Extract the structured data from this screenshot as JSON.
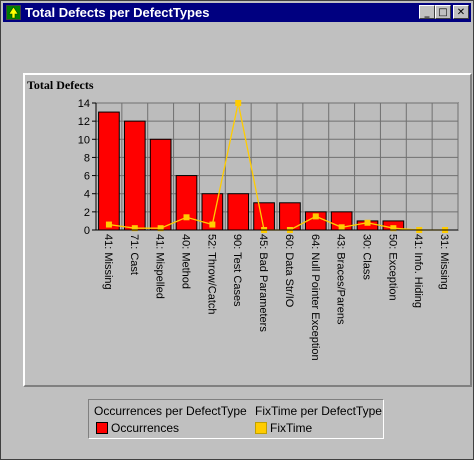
{
  "window": {
    "title": "Total Defects per DefectTypes",
    "controls": {
      "minimize": "_",
      "maximize": "□",
      "close": "✕"
    },
    "icon": "tree-icon"
  },
  "legend": {
    "header_left": "Occurrences per DefectType",
    "header_right": "FixTime per DefectType",
    "item_left": "Occurrences",
    "item_right": "FixTime"
  },
  "colors": {
    "bar": "#ff0000",
    "line": "#ffcc00",
    "plot_bg": "#bcbcbc",
    "title_bar": "#000080"
  },
  "chart_data": {
    "type": "bar",
    "ylabel": "Total Defects",
    "ylim": [
      0,
      14
    ],
    "yticks": [
      0,
      2,
      4,
      6,
      8,
      10,
      12,
      14
    ],
    "categories": [
      "41: Missing",
      "71: Cast",
      "41: Mispelled",
      "40: Method",
      "52: Throw/Catch",
      "90: Test Cases",
      "45: Bad Parameters",
      "60: Data Str/IO",
      "64: Null Pointer Exception",
      "43: Braces/Parens",
      "30: Class",
      "50: Exception",
      "41: Info. Hiding",
      "31: Missing"
    ],
    "series": [
      {
        "name": "Occurrences",
        "kind": "bar",
        "values": [
          13,
          12,
          10,
          6,
          4,
          4,
          3,
          3,
          2,
          2,
          1,
          1,
          0,
          0
        ]
      },
      {
        "name": "FixTime",
        "kind": "line",
        "values": [
          0.6,
          0.2,
          0.2,
          1.4,
          0.6,
          14,
          0,
          0,
          1.5,
          0.3,
          0.8,
          0.2,
          0,
          0
        ]
      }
    ],
    "grid": true,
    "legend_position": "bottom"
  }
}
